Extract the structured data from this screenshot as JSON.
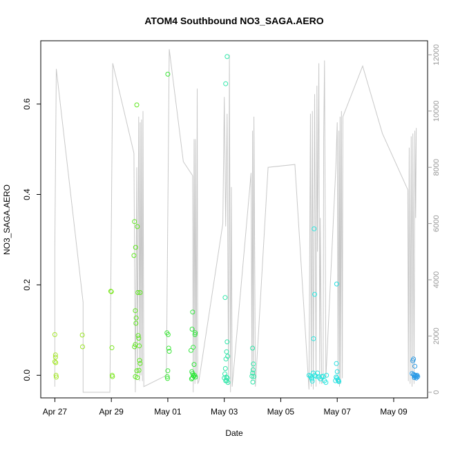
{
  "chart_data": {
    "type": "scatter",
    "title": "ATOM4 Southbound NO3_SAGA.AERO",
    "xlabel": "Date",
    "ylabel": "NO3_SAGA.AERO",
    "x_ticks": [
      {
        "day": 0,
        "label": "Apr 27"
      },
      {
        "day": 2,
        "label": "Apr 29"
      },
      {
        "day": 4,
        "label": "May 01"
      },
      {
        "day": 6,
        "label": "May 03"
      },
      {
        "day": 8,
        "label": "May 05"
      },
      {
        "day": 10,
        "label": "May 07"
      },
      {
        "day": 12,
        "label": "May 09"
      }
    ],
    "y_ticks": [
      0.0,
      0.2,
      0.4,
      0.6
    ],
    "y_tick_labels": [
      "0.0",
      "0.2",
      "0.4",
      "0.6"
    ],
    "y2_ticks": [
      0,
      2000,
      4000,
      6000,
      8000,
      10000,
      12000
    ],
    "y2_tick_labels": [
      "0",
      "2000",
      "4000",
      "6000",
      "8000",
      "10000",
      "12000"
    ],
    "xlim_days": [
      -0.5,
      13.2
    ],
    "ylim": [
      -0.05,
      0.74
    ],
    "y2lim": [
      -200,
      12500
    ],
    "x_axis_start_label": "Apr 27",
    "grid": false,
    "secondary_series": {
      "name": "",
      "axis": "right",
      "color": "#c8c8c8",
      "points": [
        [
          0.0,
          200
        ],
        [
          0.0,
          5200
        ],
        [
          0.05,
          11500
        ],
        [
          1.0,
          3200
        ],
        [
          1.0,
          0
        ],
        [
          1.95,
          0
        ],
        [
          2.05,
          11700
        ],
        [
          2.8,
          8500
        ],
        [
          2.85,
          0
        ],
        [
          2.9,
          8000
        ],
        [
          2.92,
          600
        ],
        [
          2.97,
          9800
        ],
        [
          3.0,
          400
        ],
        [
          3.02,
          9600
        ],
        [
          3.05,
          600
        ],
        [
          3.07,
          9700
        ],
        [
          3.1,
          400
        ],
        [
          3.12,
          10000
        ],
        [
          3.15,
          200
        ],
        [
          3.95,
          600
        ],
        [
          4.05,
          12200
        ],
        [
          4.55,
          8200
        ],
        [
          4.88,
          7700
        ],
        [
          4.9,
          0
        ],
        [
          4.93,
          9000
        ],
        [
          4.96,
          300
        ],
        [
          4.98,
          9000
        ],
        [
          5.01,
          500
        ],
        [
          5.04,
          10800
        ],
        [
          5.06,
          300
        ],
        [
          5.1,
          400
        ],
        [
          5.95,
          6000
        ],
        [
          6.0,
          10500
        ],
        [
          6.05,
          5900
        ],
        [
          6.1,
          9900
        ],
        [
          6.15,
          300
        ],
        [
          6.18,
          12000
        ],
        [
          6.22,
          0
        ],
        [
          6.25,
          7300
        ],
        [
          6.28,
          200
        ],
        [
          6.95,
          7800
        ],
        [
          6.98,
          400
        ],
        [
          7.0,
          9300
        ],
        [
          7.03,
          500
        ],
        [
          7.05,
          9800
        ],
        [
          7.1,
          200
        ],
        [
          7.55,
          8000
        ],
        [
          8.5,
          8100
        ],
        [
          9.0,
          100
        ],
        [
          9.05,
          9900
        ],
        [
          9.08,
          200
        ],
        [
          9.12,
          10000
        ],
        [
          9.15,
          100
        ],
        [
          9.2,
          10600
        ],
        [
          9.25,
          200
        ],
        [
          9.28,
          10900
        ],
        [
          9.3,
          5000
        ],
        [
          9.35,
          11700
        ],
        [
          9.38,
          300
        ],
        [
          9.4,
          6200
        ],
        [
          9.45,
          300
        ],
        [
          9.5,
          400
        ],
        [
          9.52,
          9000
        ],
        [
          9.55,
          11800
        ],
        [
          9.6,
          500
        ],
        [
          9.95,
          8000
        ],
        [
          10.0,
          9600
        ],
        [
          10.03,
          300
        ],
        [
          10.06,
          9300
        ],
        [
          10.08,
          200
        ],
        [
          10.1,
          9800
        ],
        [
          10.12,
          300
        ],
        [
          10.15,
          10000
        ],
        [
          10.18,
          500
        ],
        [
          10.2,
          9800
        ],
        [
          10.9,
          11600
        ],
        [
          11.6,
          9200
        ],
        [
          12.5,
          7200
        ],
        [
          12.52,
          400
        ],
        [
          12.55,
          8700
        ],
        [
          12.58,
          300
        ],
        [
          12.62,
          9100
        ],
        [
          12.65,
          200
        ],
        [
          12.68,
          9200
        ],
        [
          12.72,
          300
        ],
        [
          12.75,
          9300
        ],
        [
          12.78,
          6200
        ],
        [
          12.8,
          9400
        ]
      ]
    },
    "series": [
      {
        "name": "",
        "axis": "left",
        "points": [
          {
            "x": 0.0,
            "y": 0.09,
            "color": "#a5e82a"
          },
          {
            "x": 0.02,
            "y": 0.045,
            "color": "#a5e82a"
          },
          {
            "x": 0.0,
            "y": 0.03,
            "color": "#a5e82a"
          },
          {
            "x": 0.03,
            "y": 0.028,
            "color": "#a5e82a"
          },
          {
            "x": 0.04,
            "y": 0.0,
            "color": "#a5e82a"
          },
          {
            "x": 0.05,
            "y": -0.004,
            "color": "#a5e82a"
          },
          {
            "x": 0.02,
            "y": 0.04,
            "color": "#a5e82a"
          },
          {
            "x": 0.97,
            "y": 0.089,
            "color": "#9be626"
          },
          {
            "x": 0.98,
            "y": 0.063,
            "color": "#9be626"
          },
          {
            "x": 1.98,
            "y": 0.186,
            "color": "#7de822"
          },
          {
            "x": 2.0,
            "y": 0.185,
            "color": "#7de822"
          },
          {
            "x": 2.02,
            "y": 0.061,
            "color": "#7de822"
          },
          {
            "x": 2.03,
            "y": 0.0,
            "color": "#7de822"
          },
          {
            "x": 2.04,
            "y": -0.003,
            "color": "#7de822"
          },
          {
            "x": 2.8,
            "y": 0.265,
            "color": "#5ee61e"
          },
          {
            "x": 2.82,
            "y": 0.34,
            "color": "#5ee61e"
          },
          {
            "x": 2.85,
            "y": 0.143,
            "color": "#5ee61e"
          },
          {
            "x": 2.86,
            "y": 0.283,
            "color": "#5ee61e"
          },
          {
            "x": 2.9,
            "y": 0.598,
            "color": "#5ee61e"
          },
          {
            "x": 2.92,
            "y": 0.329,
            "color": "#5ee61e"
          },
          {
            "x": 2.94,
            "y": 0.183,
            "color": "#5ee61e"
          },
          {
            "x": 2.88,
            "y": 0.127,
            "color": "#5ee61e"
          },
          {
            "x": 2.87,
            "y": 0.115,
            "color": "#5ee61e"
          },
          {
            "x": 2.85,
            "y": 0.068,
            "color": "#5ee61e"
          },
          {
            "x": 2.82,
            "y": 0.063,
            "color": "#5ee61e"
          },
          {
            "x": 2.95,
            "y": 0.088,
            "color": "#5ee61e"
          },
          {
            "x": 2.97,
            "y": 0.082,
            "color": "#5ee61e"
          },
          {
            "x": 2.99,
            "y": 0.065,
            "color": "#5ee61e"
          },
          {
            "x": 3.02,
            "y": 0.183,
            "color": "#5ee61e"
          },
          {
            "x": 3.0,
            "y": 0.033,
            "color": "#5ee61e"
          },
          {
            "x": 3.02,
            "y": 0.026,
            "color": "#5ee61e"
          },
          {
            "x": 2.9,
            "y": 0.01,
            "color": "#5ee61e"
          },
          {
            "x": 2.98,
            "y": 0.011,
            "color": "#5ee61e"
          },
          {
            "x": 2.85,
            "y": -0.003,
            "color": "#5ee61e"
          },
          {
            "x": 2.92,
            "y": -0.005,
            "color": "#5ee61e"
          },
          {
            "x": 4.0,
            "y": 0.666,
            "color": "#3ee63a"
          },
          {
            "x": 3.97,
            "y": 0.094,
            "color": "#3ee63a"
          },
          {
            "x": 4.01,
            "y": 0.09,
            "color": "#3ee63a"
          },
          {
            "x": 4.03,
            "y": 0.06,
            "color": "#3ee63a"
          },
          {
            "x": 4.05,
            "y": 0.053,
            "color": "#3ee63a"
          },
          {
            "x": 4.0,
            "y": 0.01,
            "color": "#3ee63a"
          },
          {
            "x": 3.98,
            "y": -0.003,
            "color": "#3ee63a"
          },
          {
            "x": 3.99,
            "y": -0.007,
            "color": "#3ee63a"
          },
          {
            "x": 4.88,
            "y": 0.14,
            "color": "#2ee63a"
          },
          {
            "x": 4.86,
            "y": 0.102,
            "color": "#2ee63a"
          },
          {
            "x": 4.97,
            "y": 0.094,
            "color": "#2ee63a"
          },
          {
            "x": 4.96,
            "y": 0.09,
            "color": "#2ee63a"
          },
          {
            "x": 4.9,
            "y": 0.062,
            "color": "#2ee63a"
          },
          {
            "x": 4.82,
            "y": 0.055,
            "color": "#2ee63a"
          },
          {
            "x": 4.93,
            "y": 0.024,
            "color": "#2ee63a"
          },
          {
            "x": 4.85,
            "y": 0.008,
            "color": "#2ee63a"
          },
          {
            "x": 4.88,
            "y": 0.004,
            "color": "#2ee63a"
          },
          {
            "x": 4.9,
            "y": 0.0,
            "color": "#2ee63a"
          },
          {
            "x": 4.92,
            "y": -0.002,
            "color": "#2ee63a"
          },
          {
            "x": 4.95,
            "y": 0.0,
            "color": "#2ee63a"
          },
          {
            "x": 4.87,
            "y": -0.006,
            "color": "#2ee63a"
          },
          {
            "x": 4.84,
            "y": -0.008,
            "color": "#2ee63a"
          },
          {
            "x": 4.98,
            "y": -0.004,
            "color": "#2ee63a"
          },
          {
            "x": 6.1,
            "y": 0.705,
            "color": "#2ee6a8"
          },
          {
            "x": 6.05,
            "y": 0.645,
            "color": "#2ee6a8"
          },
          {
            "x": 6.03,
            "y": 0.172,
            "color": "#2ee6a8"
          },
          {
            "x": 6.1,
            "y": 0.074,
            "color": "#2ee6a8"
          },
          {
            "x": 6.08,
            "y": 0.052,
            "color": "#2ee6a8"
          },
          {
            "x": 6.12,
            "y": 0.042,
            "color": "#2ee6a8"
          },
          {
            "x": 6.06,
            "y": 0.036,
            "color": "#2ee6a8"
          },
          {
            "x": 6.04,
            "y": 0.015,
            "color": "#2ee6a8"
          },
          {
            "x": 6.02,
            "y": 0.003,
            "color": "#2ee6a8"
          },
          {
            "x": 6.0,
            "y": -0.006,
            "color": "#2ee6a8"
          },
          {
            "x": 6.07,
            "y": -0.004,
            "color": "#2ee6a8"
          },
          {
            "x": 6.09,
            "y": -0.012,
            "color": "#2ee6a8"
          },
          {
            "x": 6.13,
            "y": -0.016,
            "color": "#2ee6a8"
          },
          {
            "x": 6.11,
            "y": -0.006,
            "color": "#2ee6a8"
          },
          {
            "x": 6.05,
            "y": -0.012,
            "color": "#2ee6a8"
          },
          {
            "x": 7.0,
            "y": 0.06,
            "color": "#2ee6a8"
          },
          {
            "x": 7.03,
            "y": 0.025,
            "color": "#2ee6a8"
          },
          {
            "x": 7.02,
            "y": 0.012,
            "color": "#2ee6a8"
          },
          {
            "x": 7.0,
            "y": 0.005,
            "color": "#2ee6a8"
          },
          {
            "x": 6.98,
            "y": -0.002,
            "color": "#2ee6a8"
          },
          {
            "x": 7.05,
            "y": -0.003,
            "color": "#2ee6a8"
          },
          {
            "x": 7.01,
            "y": -0.015,
            "color": "#2ee6a8"
          },
          {
            "x": 9.18,
            "y": 0.324,
            "color": "#26e6e0"
          },
          {
            "x": 9.2,
            "y": 0.179,
            "color": "#26e6e0"
          },
          {
            "x": 9.16,
            "y": 0.081,
            "color": "#26e6e0"
          },
          {
            "x": 9.0,
            "y": 0.0,
            "color": "#26e6e0"
          },
          {
            "x": 9.05,
            "y": -0.002,
            "color": "#26e6e0"
          },
          {
            "x": 9.08,
            "y": -0.005,
            "color": "#26e6e0"
          },
          {
            "x": 9.1,
            "y": -0.008,
            "color": "#26e6e0"
          },
          {
            "x": 9.12,
            "y": -0.013,
            "color": "#26e6e0"
          },
          {
            "x": 9.15,
            "y": 0.005,
            "color": "#26e6e0"
          },
          {
            "x": 9.2,
            "y": 0.0,
            "color": "#26e6e0"
          },
          {
            "x": 9.25,
            "y": -0.002,
            "color": "#26e6e0"
          },
          {
            "x": 9.3,
            "y": 0.005,
            "color": "#26e6e0"
          },
          {
            "x": 9.35,
            "y": -0.004,
            "color": "#26e6e0"
          },
          {
            "x": 9.4,
            "y": -0.008,
            "color": "#26e6e0"
          },
          {
            "x": 9.45,
            "y": -0.003,
            "color": "#26e6e0"
          },
          {
            "x": 9.5,
            "y": -0.002,
            "color": "#26e6e0"
          },
          {
            "x": 9.55,
            "y": -0.012,
            "color": "#26e6e0"
          },
          {
            "x": 9.6,
            "y": -0.016,
            "color": "#26e6e0"
          },
          {
            "x": 9.62,
            "y": 0.0,
            "color": "#26e6e0"
          },
          {
            "x": 9.98,
            "y": 0.202,
            "color": "#26e0e0"
          },
          {
            "x": 9.97,
            "y": 0.026,
            "color": "#26e0e0"
          },
          {
            "x": 10.0,
            "y": 0.008,
            "color": "#26e0e0"
          },
          {
            "x": 9.96,
            "y": -0.004,
            "color": "#26e0e0"
          },
          {
            "x": 9.99,
            "y": -0.006,
            "color": "#26e0e0"
          },
          {
            "x": 10.02,
            "y": -0.01,
            "color": "#26e0e0"
          },
          {
            "x": 10.04,
            "y": -0.012,
            "color": "#26e0e0"
          },
          {
            "x": 10.06,
            "y": -0.014,
            "color": "#26e0e0"
          },
          {
            "x": 9.94,
            "y": -0.012,
            "color": "#26e0e0"
          },
          {
            "x": 12.7,
            "y": 0.036,
            "color": "#2a9ae6"
          },
          {
            "x": 12.68,
            "y": 0.032,
            "color": "#2a9ae6"
          },
          {
            "x": 12.75,
            "y": 0.02,
            "color": "#2a9ae6"
          },
          {
            "x": 12.65,
            "y": 0.004,
            "color": "#2a9ae6"
          },
          {
            "x": 12.7,
            "y": 0.002,
            "color": "#2a9ae6"
          },
          {
            "x": 12.72,
            "y": 0.0,
            "color": "#2a9ae6"
          },
          {
            "x": 12.74,
            "y": -0.002,
            "color": "#2a9ae6"
          },
          {
            "x": 12.77,
            "y": 0.0,
            "color": "#2a9ae6"
          },
          {
            "x": 12.79,
            "y": -0.003,
            "color": "#2a9ae6"
          },
          {
            "x": 12.81,
            "y": -0.002,
            "color": "#2a9ae6"
          },
          {
            "x": 12.83,
            "y": 0.0,
            "color": "#2a9ae6"
          },
          {
            "x": 12.85,
            "y": -0.003,
            "color": "#2a9ae6"
          },
          {
            "x": 12.73,
            "y": -0.005,
            "color": "#2a9ae6"
          },
          {
            "x": 12.8,
            "y": -0.006,
            "color": "#2a9ae6"
          }
        ]
      }
    ]
  }
}
